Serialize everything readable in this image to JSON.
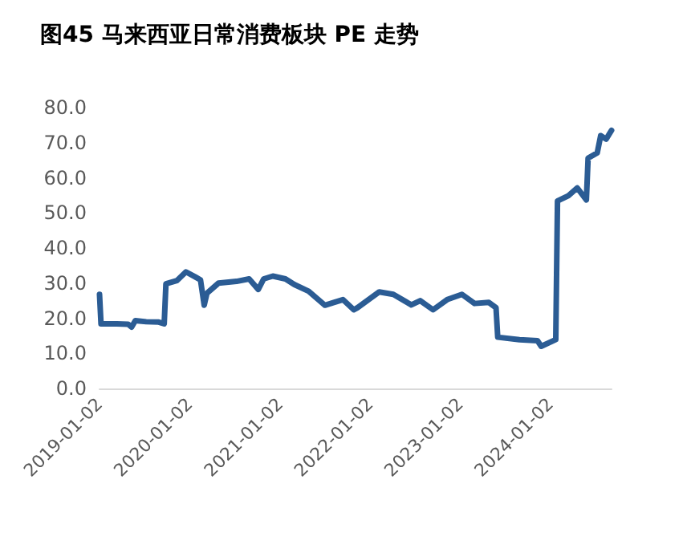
{
  "chart_data": {
    "type": "line",
    "title": "图45 马来西亚日常消费板块 PE 走势",
    "x": [
      "2019-01-02",
      "2019-01-08",
      "2019-03-13",
      "2019-04-28",
      "2019-05-12",
      "2019-05-27",
      "2019-07-10",
      "2019-08-30",
      "2019-09-21",
      "2019-09-28",
      "2019-11-11",
      "2019-12-18",
      "2020-01-24",
      "2020-02-15",
      "2020-03-01",
      "2020-03-12",
      "2020-04-28",
      "2020-07-10",
      "2020-08-30",
      "2020-10-06",
      "2020-10-28",
      "2020-12-04",
      "2021-01-24",
      "2021-03-01",
      "2021-04-28",
      "2021-07-03",
      "2021-08-08",
      "2021-09-14",
      "2021-10-28",
      "2021-11-12",
      "2022-02-08",
      "2022-04-06",
      "2022-06-18",
      "2022-07-24",
      "2022-09-14",
      "2022-11-10",
      "2023-01-09",
      "2023-03-01",
      "2023-04-28",
      "2023-05-27",
      "2023-06-03",
      "2023-08-30",
      "2023-11-11",
      "2023-11-26",
      "2024-01-24",
      "2024-01-31",
      "2024-03-15",
      "2024-04-20",
      "2024-05-27",
      "2024-06-03",
      "2024-07-10",
      "2024-07-24",
      "2024-08-15",
      "2024-09-06"
    ],
    "series": [
      {
        "color": "#2b5c94",
        "values": [
          26.8,
          18.4,
          18.4,
          18.3,
          17.5,
          19.3,
          19,
          18.9,
          18.4,
          29.8,
          30.7,
          33.2,
          31.8,
          30.9,
          23.7,
          27.1,
          30,
          30.5,
          31.2,
          28.2,
          31.2,
          32,
          31.2,
          29.6,
          27.7,
          23.7,
          24.5,
          25.3,
          22.4,
          23,
          27.5,
          26.8,
          23.8,
          25,
          22.4,
          25.3,
          26.8,
          24.2,
          24.5,
          23,
          14.6,
          13.9,
          13.6,
          12,
          13.9,
          53.4,
          54.9,
          57.1,
          53.7,
          65.6,
          67.1,
          72,
          71,
          73.5
        ]
      }
    ],
    "xlim": [
      "2019-01-02",
      "2024-09-06"
    ],
    "xticks": [
      "2019-01-02",
      "2020-01-02",
      "2021-01-02",
      "2022-01-02",
      "2023-01-02",
      "2024-01-02"
    ],
    "ylim": [
      0,
      80
    ],
    "yticks": [
      {
        "value": 0,
        "label": "0.0"
      },
      {
        "value": 10,
        "label": "10.0"
      },
      {
        "value": 20,
        "label": "20.0"
      },
      {
        "value": 30,
        "label": "30.0"
      },
      {
        "value": 40,
        "label": "40.0"
      },
      {
        "value": 50,
        "label": "50.0"
      },
      {
        "value": 60,
        "label": "60.0"
      },
      {
        "value": 70,
        "label": "70.0"
      },
      {
        "value": 80,
        "label": "80.0"
      }
    ],
    "grid": false,
    "marker": "none",
    "line_style": "solid"
  }
}
